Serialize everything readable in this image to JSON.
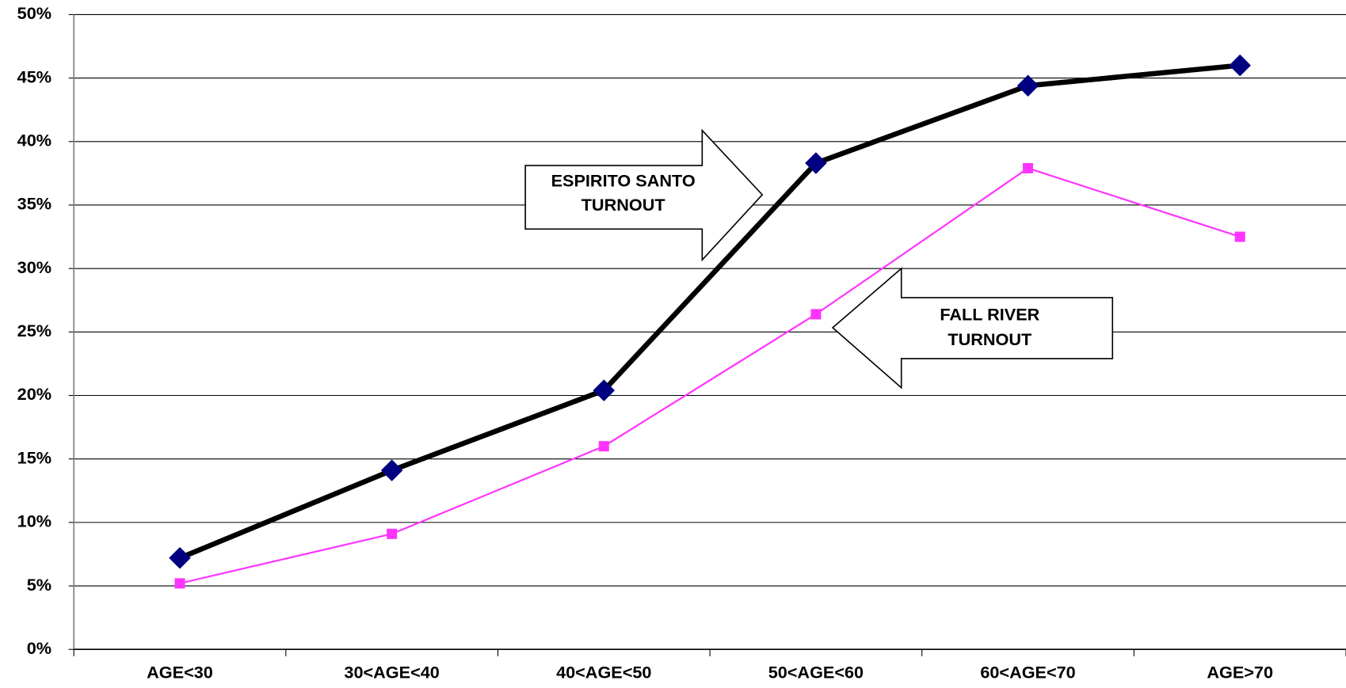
{
  "chart_data": {
    "type": "line",
    "categories": [
      "AGE<30",
      "30<AGE<40",
      "40<AGE<50",
      "50<AGE<60",
      "60<AGE<70",
      "AGE>70"
    ],
    "series": [
      {
        "color": "#000000",
        "marker_color": "#000080",
        "marker": "diamond",
        "values": [
          7.2,
          14.1,
          20.4,
          38.3,
          44.4,
          46.0
        ]
      },
      {
        "color": "#ff33ff",
        "marker_color": "#ff33ff",
        "marker": "square",
        "values": [
          5.2,
          9.1,
          16.0,
          26.4,
          37.9,
          32.5
        ]
      }
    ],
    "ylim": [
      0,
      50
    ],
    "yticks": [
      {
        "value": 0,
        "label": "0%"
      },
      {
        "value": 5,
        "label": "5%"
      },
      {
        "value": 10,
        "label": "10%"
      },
      {
        "value": 15,
        "label": "15%"
      },
      {
        "value": 20,
        "label": "20%"
      },
      {
        "value": 25,
        "label": "25%"
      },
      {
        "value": 30,
        "label": "30%"
      },
      {
        "value": 35,
        "label": "35%"
      },
      {
        "value": 40,
        "label": "40%"
      },
      {
        "value": 45,
        "label": "45%"
      },
      {
        "value": 50,
        "label": "50%"
      }
    ],
    "grid": true,
    "annotations": [
      {
        "lines": [
          "ESPIRITO SANTO",
          "TURNOUT"
        ]
      },
      {
        "lines": [
          "FALL RIVER",
          "TURNOUT"
        ]
      }
    ]
  }
}
